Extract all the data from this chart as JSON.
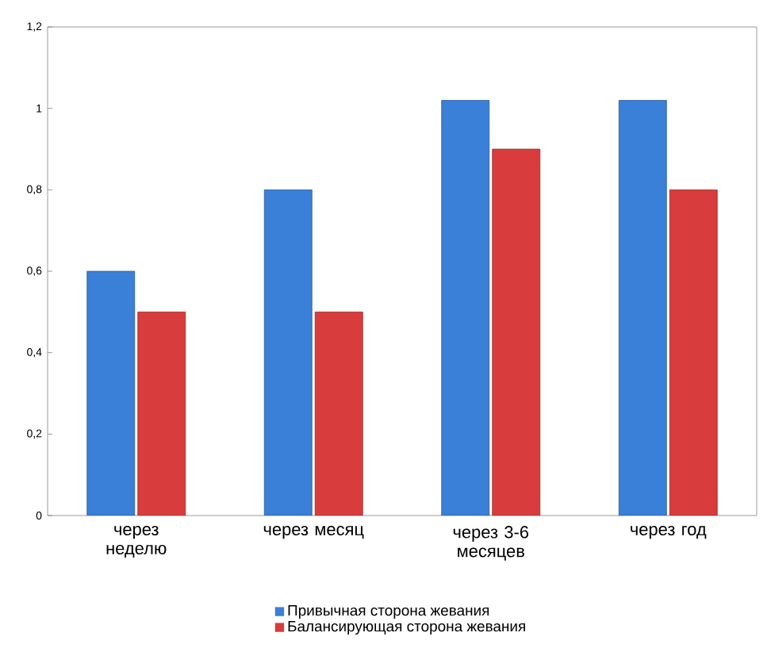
{
  "chart_data": {
    "type": "bar",
    "categories": [
      "через неделю",
      "через месяц",
      "через 3-6 месяцев",
      "через год"
    ],
    "series": [
      {
        "name": "Привычная сторона жевания",
        "color": "#3a7fd8",
        "values": [
          0.6,
          0.8,
          1.02,
          1.02
        ]
      },
      {
        "name": "Балансирующая сторона жевания",
        "color": "#d83c3c",
        "values": [
          0.5,
          0.5,
          0.9,
          0.8
        ]
      }
    ],
    "ylim": [
      0,
      1.2
    ],
    "yticks": [
      {
        "value": 0,
        "label": "0"
      },
      {
        "value": 0.2,
        "label": "0,2"
      },
      {
        "value": 0.4,
        "label": "0,4"
      },
      {
        "value": 0.6,
        "label": "0,6"
      },
      {
        "value": 0.8,
        "label": "0,8"
      },
      {
        "value": 1,
        "label": "1"
      },
      {
        "value": 1.2,
        "label": "1,2"
      }
    ],
    "grid": false,
    "legend": "bottom"
  }
}
